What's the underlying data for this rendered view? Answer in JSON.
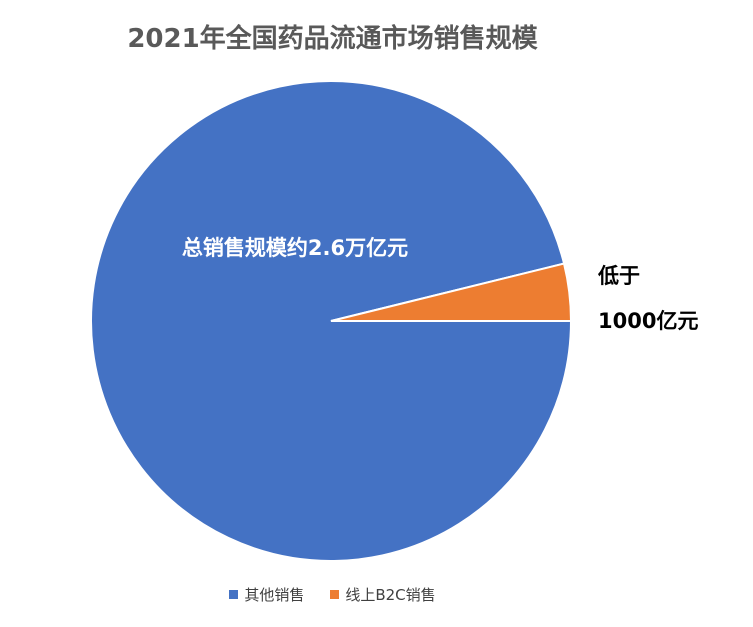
{
  "chart_data": {
    "type": "pie",
    "title": "2021年全国药品流通市场销售规模",
    "slices": [
      {
        "name": "其他销售",
        "value": 25000,
        "color": "#4472C4",
        "label": "总销售规模约2.6万亿元"
      },
      {
        "name": "线上B2C销售",
        "value": 1000,
        "color": "#ED7D31",
        "label_lines": [
          "低于",
          "1000亿元"
        ]
      }
    ],
    "legend_position": "bottom"
  }
}
